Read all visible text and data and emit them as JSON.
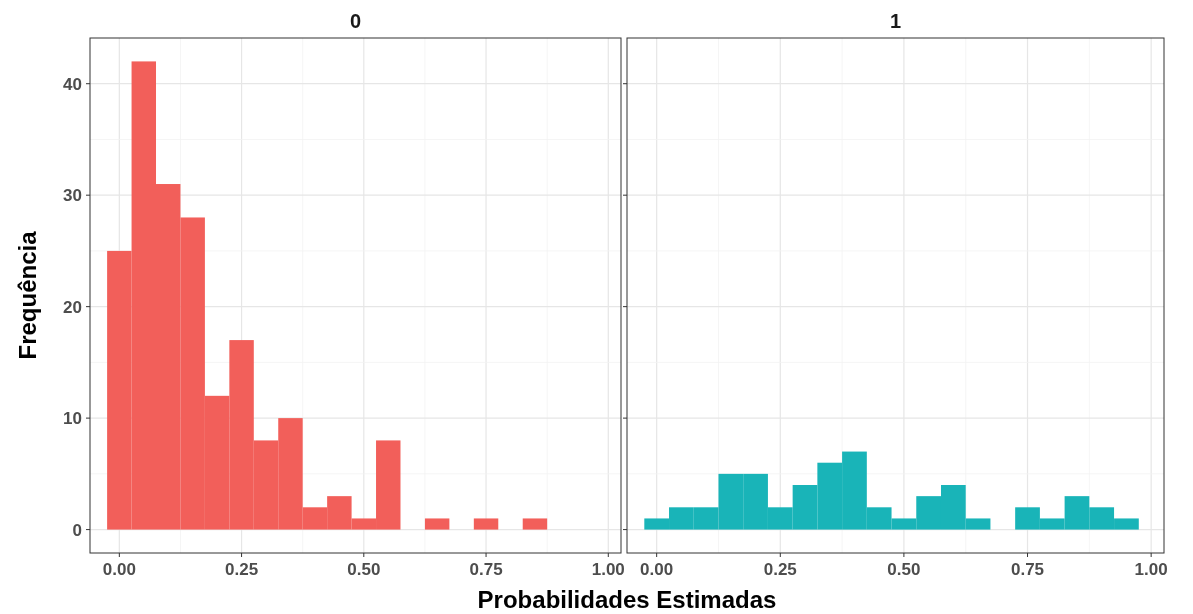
{
  "chart_data": [
    {
      "type": "histogram",
      "title": "0",
      "xlabel": "Probabilidades Estimadas",
      "ylabel": "Frequência",
      "color": "#f25f5a",
      "grid": true,
      "bins": [
        -0.025,
        0.025,
        0.075,
        0.125,
        0.175,
        0.225,
        0.275,
        0.325,
        0.375,
        0.425,
        0.475,
        0.525,
        0.575,
        0.625,
        0.675,
        0.725,
        0.775,
        0.825,
        0.875,
        0.925,
        0.975
      ],
      "values": [
        25,
        42,
        31,
        28,
        12,
        17,
        8,
        10,
        2,
        3,
        1,
        8,
        0,
        1,
        0,
        1,
        0,
        1,
        0,
        0
      ],
      "xlim": [
        -0.06,
        1.026
      ],
      "ylim": [
        -2.1,
        44.1
      ],
      "xticks": [
        {
          "value": 0,
          "label": "0.00"
        },
        {
          "value": 0.25,
          "label": "0.25"
        },
        {
          "value": 0.5,
          "label": "0.50"
        },
        {
          "value": 0.75,
          "label": "0.75"
        },
        {
          "value": 1,
          "label": "1.00"
        }
      ],
      "yticks": [
        0,
        10,
        20,
        30,
        40
      ]
    },
    {
      "type": "histogram",
      "title": "1",
      "color": "#19b4b8",
      "grid": true,
      "tick_labels": "x",
      "bins": [
        -0.025,
        0.025,
        0.075,
        0.125,
        0.175,
        0.225,
        0.275,
        0.325,
        0.375,
        0.425,
        0.475,
        0.525,
        0.575,
        0.625,
        0.675,
        0.725,
        0.775,
        0.825,
        0.875,
        0.925,
        0.975
      ],
      "values": [
        1,
        2,
        2,
        5,
        5,
        2,
        4,
        6,
        7,
        2,
        1,
        3,
        4,
        1,
        0,
        2,
        1,
        3,
        2,
        1
      ],
      "xlim": [
        -0.06,
        1.026
      ],
      "ylim": [
        -2.1,
        44.1
      ],
      "xticks": [
        {
          "value": 0,
          "label": "0.00"
        },
        {
          "value": 0.25,
          "label": "0.25"
        },
        {
          "value": 0.5,
          "label": "0.50"
        },
        {
          "value": 0.75,
          "label": "0.75"
        },
        {
          "value": 1,
          "label": "1.00"
        }
      ],
      "yticks": [
        0,
        10,
        20,
        30,
        40
      ]
    }
  ]
}
